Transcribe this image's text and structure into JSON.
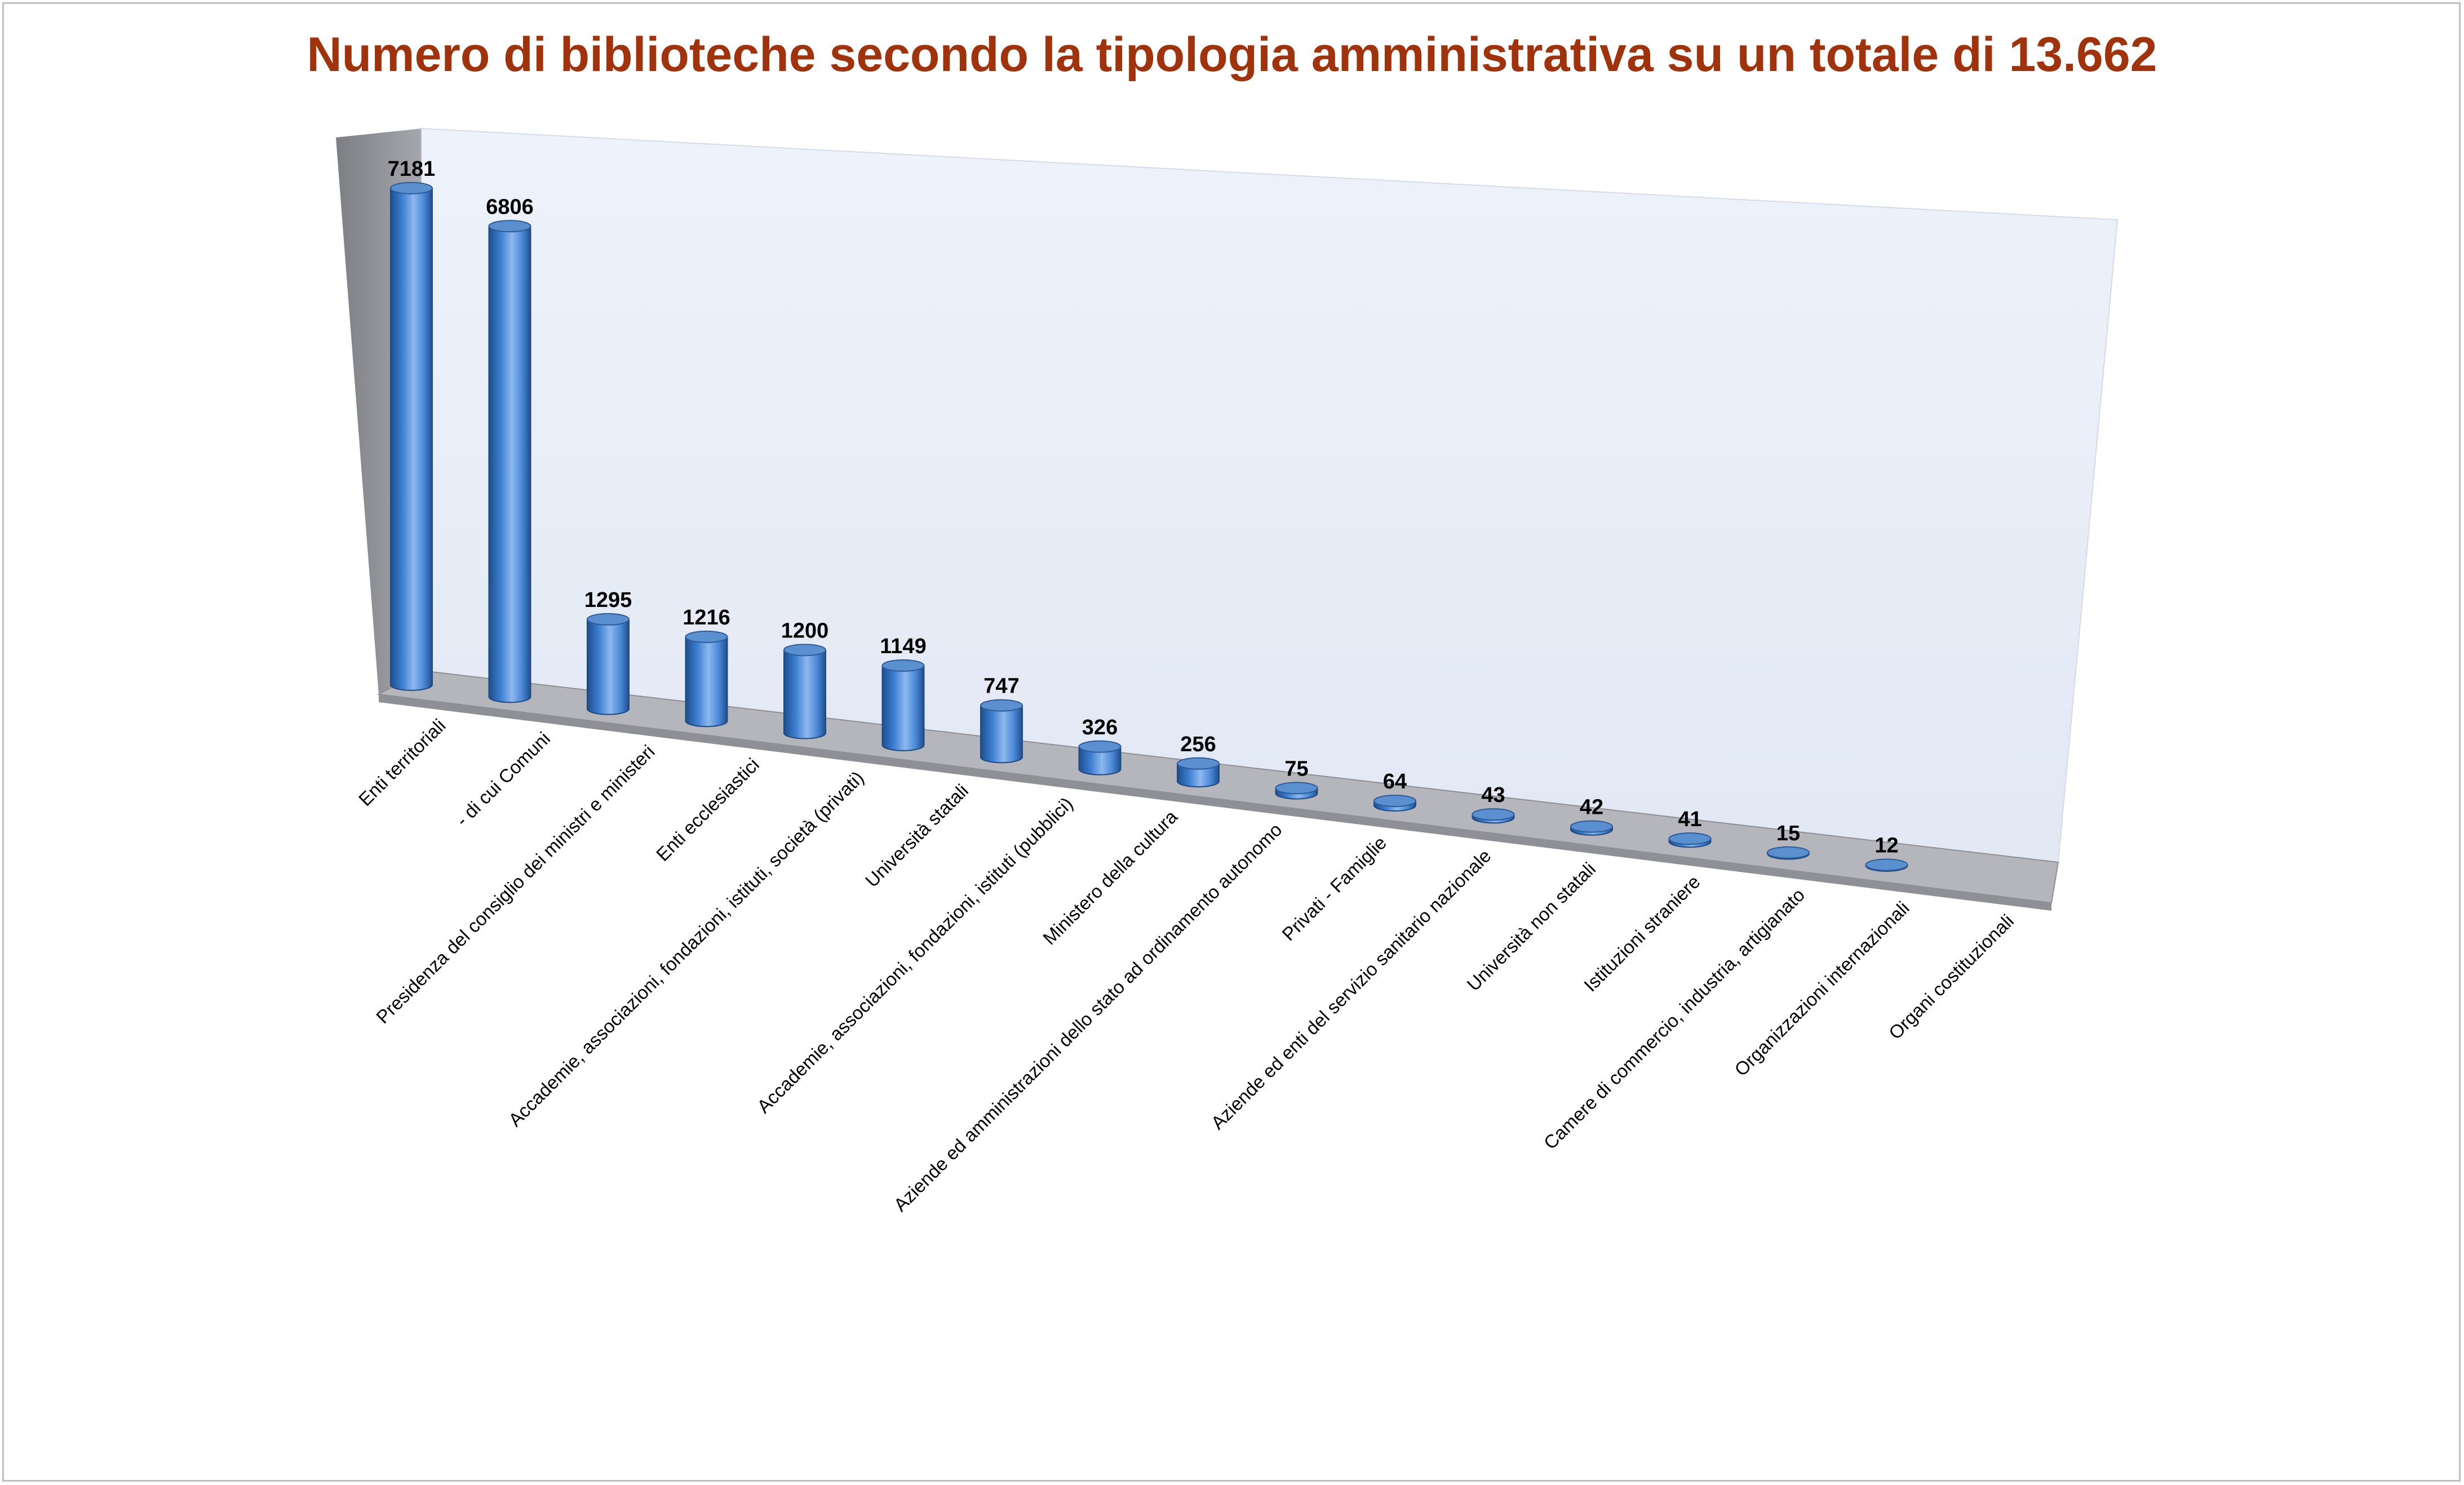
{
  "chart_data": {
    "type": "bar",
    "style": "3d-cylinder",
    "title": "Numero di biblioteche secondo la tipologia amministrativa su un totale di 13.662",
    "xlabel": "",
    "ylabel": "",
    "ylim": [
      0,
      8000
    ],
    "grid": false,
    "legend": "none",
    "categories": [
      "Enti territoriali",
      "- di cui Comuni",
      "Presidenza del consiglio dei ministri e ministeri",
      "Enti ecclesiastici",
      "Accademie, associazioni, fondazioni, istituti, società (privati)",
      "Università statali",
      "Accademie, associazioni, fondazioni, istituti (pubblici)",
      "Ministero della cultura",
      "Aziende ed amministrazioni dello stato ad ordinamento autonomo",
      "Privati - Famiglie",
      "Aziende ed enti del servizio sanitario nazionale",
      "Università non statali",
      "Istituzioni straniere",
      "Camere di commercio, industria, artigianato",
      "Organizzazioni internazionali",
      "Organi costituzionali"
    ],
    "values": [
      7181,
      6806,
      1295,
      1216,
      1200,
      1149,
      747,
      326,
      256,
      75,
      64,
      43,
      42,
      41,
      15,
      12
    ],
    "value_labels": [
      "7181",
      "6806",
      "1295",
      "1216",
      "1200",
      "1149",
      "747",
      "326",
      "256",
      "75",
      "64",
      "43",
      "42",
      "41",
      "15",
      "12"
    ],
    "colors": {
      "title": "#a0330b",
      "bar_dark": "#1f4e8c",
      "bar_mid": "#3c7fd1",
      "bar_light": "#8db8ee",
      "bar_top": "#5a8fd0",
      "back_wall": "#e8edf7",
      "side_wall": "#8f9196",
      "floor": "#a9abb0"
    }
  }
}
